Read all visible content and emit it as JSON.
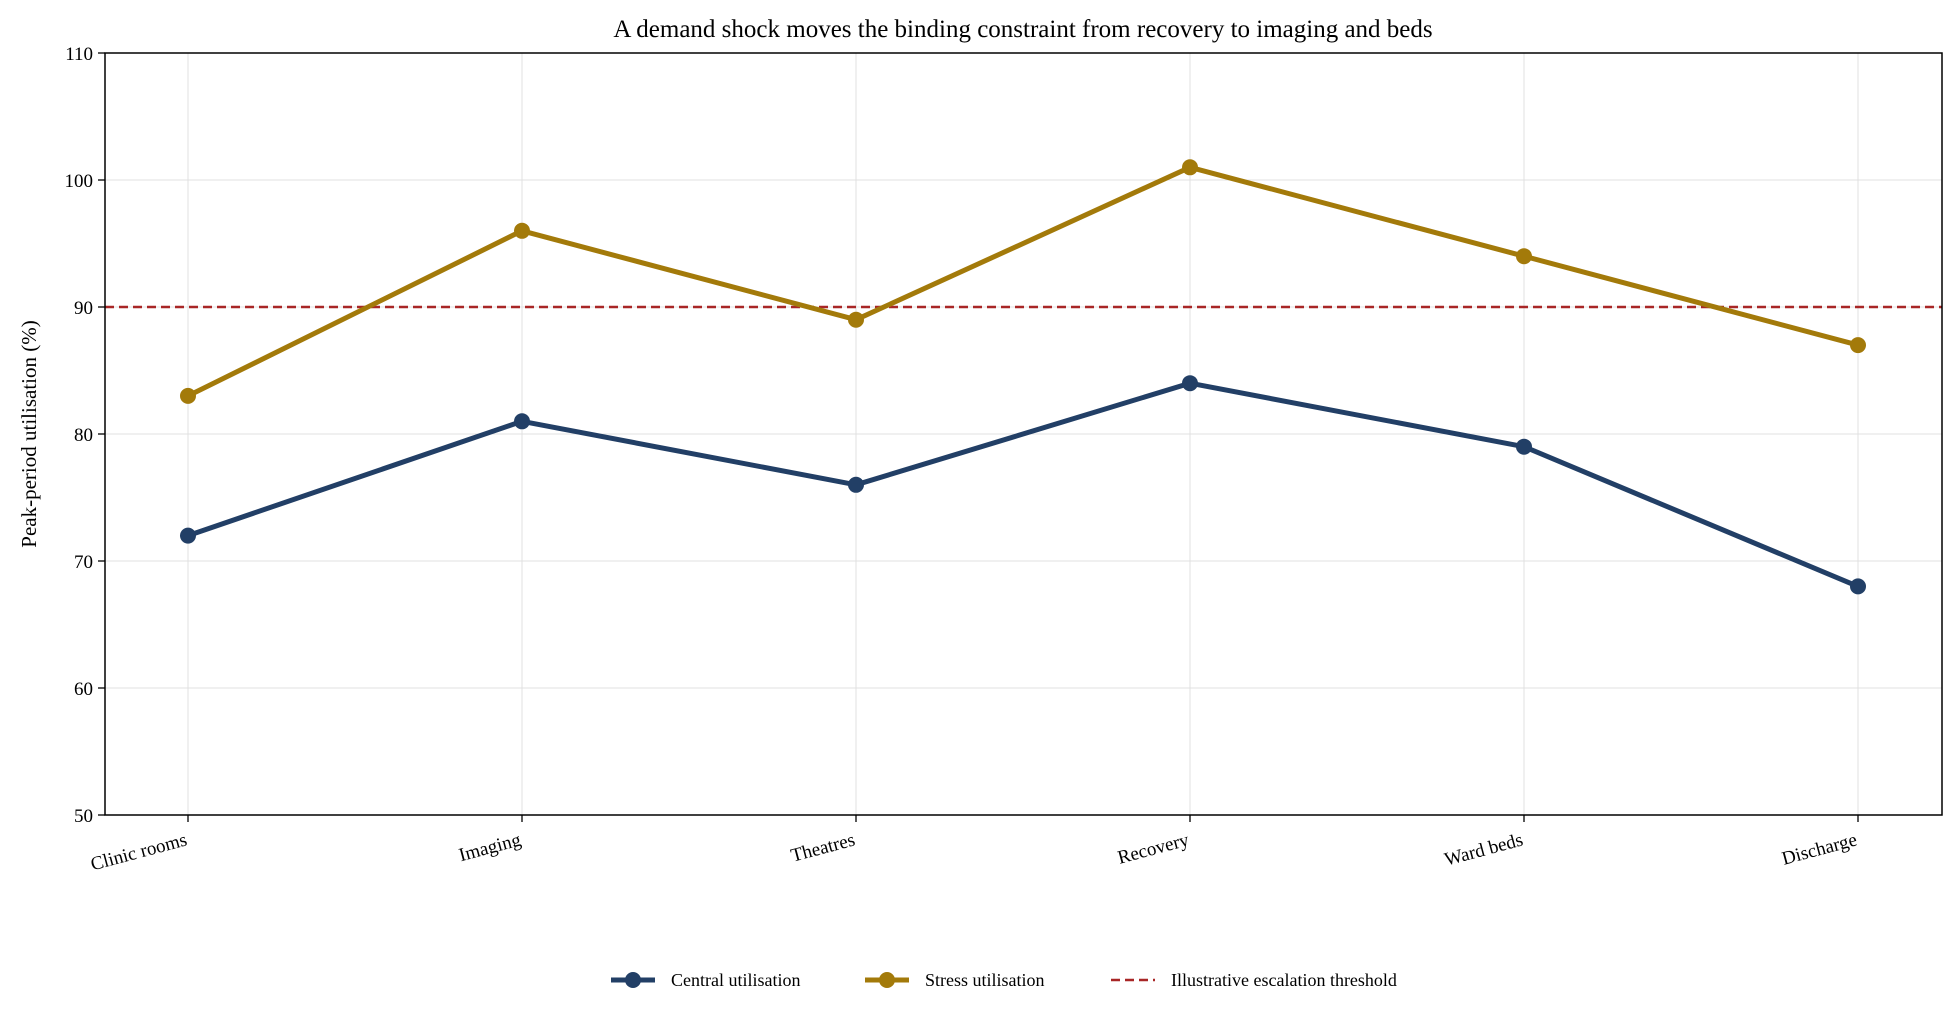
{
  "chart_data": {
    "type": "line",
    "title": "A demand shock moves the binding constraint from recovery to imaging and beds",
    "xlabel": "",
    "ylabel": "Peak-period utilisation (%)",
    "categories": [
      "Clinic rooms",
      "Imaging",
      "Theatres",
      "Recovery",
      "Ward beds",
      "Discharge"
    ],
    "ylim": [
      50,
      110
    ],
    "yticks": [
      50,
      60,
      70,
      80,
      90,
      100,
      110
    ],
    "grid": true,
    "legend_position": "bottom-center",
    "series": [
      {
        "name": "Central utilisation",
        "values": [
          72,
          81,
          76,
          84,
          79,
          68
        ],
        "color": "#223f66"
      },
      {
        "name": "Stress utilisation",
        "values": [
          83,
          96,
          89,
          101,
          94,
          87
        ],
        "color": "#a37a0a"
      }
    ],
    "reference_line": {
      "name": "Illustrative escalation threshold",
      "value": 90,
      "color": "#a82626",
      "style": "dashed"
    }
  }
}
